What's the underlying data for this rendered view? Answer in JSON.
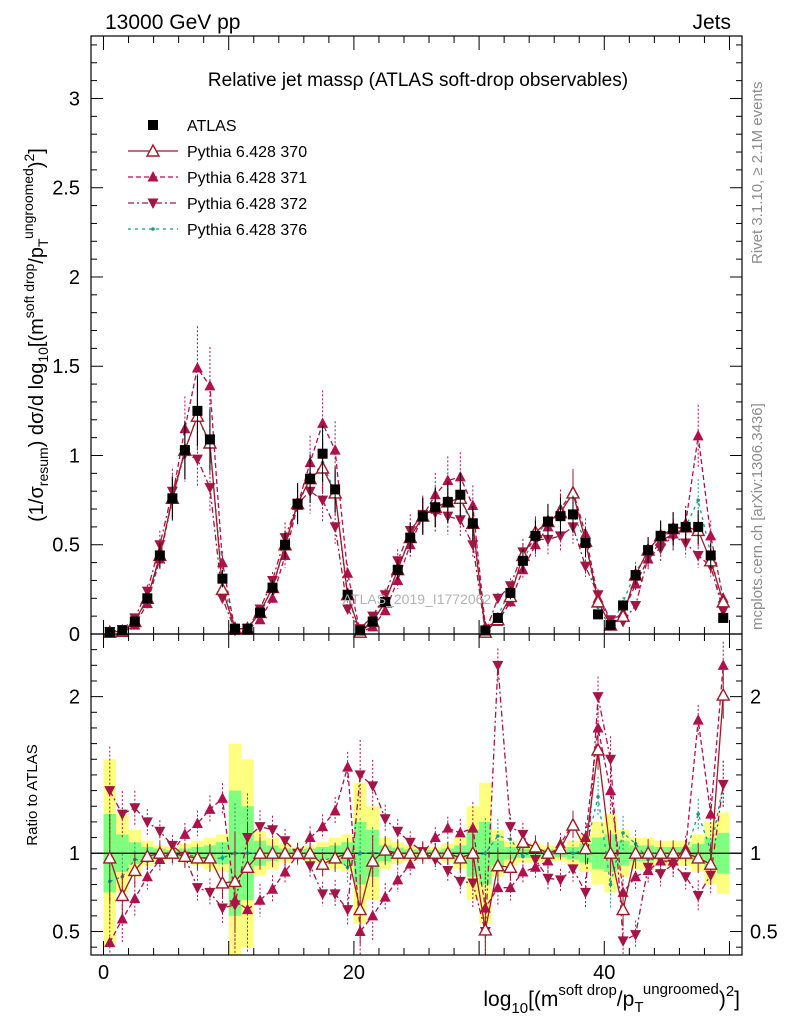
{
  "header": {
    "left": "13000 GeV pp",
    "right": "Jets"
  },
  "side": {
    "rivet": "Rivet 3.1.10, ≥ 2.1M events",
    "mcplots": "mcplots.cern.ch [arXiv:1306.3436]"
  },
  "colors": {
    "atlas": "#000000",
    "p370": "#9c1b2a",
    "p371": "#b0104d",
    "p372": "#a31545",
    "p376": "#1a9b83",
    "band_outer": "#ffff7f",
    "band_inner": "#7fff7f"
  },
  "chart_data": [
    {
      "type": "scatter",
      "title": "Relative jet massρ (ATLAS soft-drop observables)",
      "watermark": "ATLAS_2019_I1772062",
      "ylabel": "(1/σresum) dσ/d log10[(msoft drop/pTungroomed)2]",
      "xlabel": "log10[(msoft drop/pTungroomed)2]",
      "xlim": [
        -1,
        51
      ],
      "ylim": [
        0,
        3.35
      ],
      "yticks": [
        0,
        0.5,
        1,
        1.5,
        2,
        2.5,
        3
      ],
      "xticks": [
        0,
        20,
        40
      ],
      "legend": "top-left",
      "x": [
        0.5,
        1.5,
        2.5,
        3.5,
        4.5,
        5.5,
        6.5,
        7.5,
        8.5,
        9.5,
        10.5,
        11.5,
        12.5,
        13.5,
        14.5,
        15.5,
        16.5,
        17.5,
        18.5,
        19.5,
        20.5,
        21.5,
        22.5,
        23.5,
        24.5,
        25.5,
        26.5,
        27.5,
        28.5,
        29.5,
        30.5,
        31.5,
        32.5,
        33.5,
        34.5,
        35.5,
        36.5,
        37.5,
        38.5,
        39.5,
        40.5,
        41.5,
        42.5,
        43.5,
        44.5,
        45.5,
        46.5,
        47.5,
        48.5,
        49.5
      ],
      "series": [
        {
          "name": "ATLAS",
          "marker": "square",
          "values": [
            0.01,
            0.02,
            0.07,
            0.2,
            0.44,
            0.76,
            1.03,
            1.25,
            1.09,
            0.31,
            0.03,
            0.03,
            0.12,
            0.26,
            0.5,
            0.73,
            0.87,
            1.01,
            0.81,
            0.22,
            0.02,
            0.07,
            0.18,
            0.36,
            0.54,
            0.66,
            0.71,
            0.74,
            0.78,
            0.62,
            0.02,
            0.09,
            0.23,
            0.41,
            0.55,
            0.63,
            0.66,
            0.67,
            0.51,
            0.11,
            0.05,
            0.16,
            0.33,
            0.47,
            0.55,
            0.59,
            0.6,
            0.6,
            0.44,
            0.09
          ]
        },
        {
          "name": "Pythia 6.428 370",
          "marker": "open-triangle-up",
          "values": [
            0.01,
            0.015,
            0.07,
            0.2,
            0.44,
            0.76,
            1.03,
            1.22,
            1.07,
            0.25,
            0.03,
            0.03,
            0.12,
            0.26,
            0.5,
            0.73,
            0.87,
            0.93,
            0.79,
            0.22,
            0.01,
            0.07,
            0.18,
            0.36,
            0.54,
            0.66,
            0.71,
            0.74,
            0.76,
            0.62,
            0.01,
            0.08,
            0.21,
            0.44,
            0.57,
            0.63,
            0.68,
            0.79,
            0.52,
            0.18,
            0.05,
            0.1,
            0.33,
            0.47,
            0.55,
            0.59,
            0.6,
            0.58,
            0.41,
            0.18
          ]
        },
        {
          "name": "Pythia 6.428 371",
          "marker": "triangle-up",
          "values": [
            0.004,
            0.01,
            0.05,
            0.17,
            0.42,
            0.77,
            1.15,
            1.49,
            1.39,
            0.4,
            0.02,
            0.02,
            0.08,
            0.2,
            0.44,
            0.72,
            0.96,
            1.18,
            1.03,
            0.34,
            0.01,
            0.04,
            0.13,
            0.3,
            0.5,
            0.66,
            0.78,
            0.86,
            0.88,
            0.72,
            0.04,
            0.07,
            0.18,
            0.36,
            0.5,
            0.6,
            0.7,
            0.8,
            0.56,
            0.2,
            0.07,
            0.12,
            0.28,
            0.42,
            0.52,
            0.56,
            0.62,
            1.11,
            0.55,
            0.2
          ]
        },
        {
          "name": "Pythia 6.428 372",
          "marker": "triangle-down",
          "values": [
            0.014,
            0.025,
            0.09,
            0.24,
            0.5,
            0.8,
            1.01,
            0.98,
            0.82,
            0.2,
            0.02,
            0.03,
            0.14,
            0.3,
            0.54,
            0.73,
            0.8,
            0.75,
            0.6,
            0.14,
            0.03,
            0.1,
            0.22,
            0.41,
            0.58,
            0.67,
            0.68,
            0.66,
            0.64,
            0.5,
            0.01,
            0.2,
            0.27,
            0.46,
            0.53,
            0.53,
            0.55,
            0.6,
            0.38,
            0.22,
            0.08,
            0.07,
            0.16,
            0.43,
            0.48,
            0.55,
            0.51,
            0.44,
            0.38,
            0.13
          ]
        },
        {
          "name": "Pythia 6.428 376",
          "marker": "dot",
          "values": [
            0.01,
            0.018,
            0.07,
            0.19,
            0.43,
            0.75,
            1.02,
            1.23,
            1.05,
            0.3,
            0.03,
            0.03,
            0.12,
            0.26,
            0.49,
            0.73,
            0.86,
            0.96,
            0.79,
            0.2,
            0.02,
            0.07,
            0.18,
            0.36,
            0.54,
            0.66,
            0.71,
            0.74,
            0.76,
            0.6,
            0.02,
            0.1,
            0.25,
            0.4,
            0.56,
            0.62,
            0.68,
            0.67,
            0.52,
            0.15,
            0.04,
            0.18,
            0.35,
            0.45,
            0.53,
            0.55,
            0.6,
            0.75,
            0.45,
            0.13
          ]
        }
      ]
    },
    {
      "type": "line",
      "ylabel": "Ratio to ATLAS",
      "xlabel": "log10[(msoft drop/pTungroomed)2]",
      "xlim": [
        -1,
        51
      ],
      "ylim": [
        0.35,
        2.4
      ],
      "yticks": [
        0.5,
        1,
        2
      ],
      "xticks": [
        0,
        20,
        40
      ],
      "x": [
        0.5,
        1.5,
        2.5,
        3.5,
        4.5,
        5.5,
        6.5,
        7.5,
        8.5,
        9.5,
        10.5,
        11.5,
        12.5,
        13.5,
        14.5,
        15.5,
        16.5,
        17.5,
        18.5,
        19.5,
        20.5,
        21.5,
        22.5,
        23.5,
        24.5,
        25.5,
        26.5,
        27.5,
        28.5,
        29.5,
        30.5,
        31.5,
        32.5,
        33.5,
        34.5,
        35.5,
        36.5,
        37.5,
        38.5,
        39.5,
        40.5,
        41.5,
        42.5,
        43.5,
        44.5,
        45.5,
        46.5,
        47.5,
        48.5,
        49.5
      ],
      "band_outer": [
        0.6,
        0.25,
        0.15,
        0.08,
        0.05,
        0.04,
        0.06,
        0.08,
        0.1,
        0.12,
        0.7,
        0.6,
        0.14,
        0.1,
        0.06,
        0.04,
        0.05,
        0.07,
        0.1,
        0.12,
        0.45,
        0.3,
        0.1,
        0.07,
        0.05,
        0.04,
        0.04,
        0.06,
        0.1,
        0.3,
        0.45,
        0.15,
        0.08,
        0.06,
        0.06,
        0.05,
        0.05,
        0.08,
        0.12,
        0.2,
        0.25,
        0.15,
        0.1,
        0.1,
        0.08,
        0.08,
        0.08,
        0.12,
        0.2,
        0.26
      ],
      "band_inner": [
        0.25,
        0.12,
        0.07,
        0.04,
        0.03,
        0.02,
        0.03,
        0.04,
        0.05,
        0.07,
        0.4,
        0.3,
        0.08,
        0.05,
        0.03,
        0.02,
        0.03,
        0.04,
        0.05,
        0.07,
        0.2,
        0.15,
        0.05,
        0.035,
        0.025,
        0.02,
        0.02,
        0.03,
        0.05,
        0.15,
        0.2,
        0.08,
        0.04,
        0.03,
        0.03,
        0.025,
        0.025,
        0.04,
        0.06,
        0.1,
        0.12,
        0.08,
        0.05,
        0.05,
        0.04,
        0.04,
        0.04,
        0.06,
        0.1,
        0.13
      ],
      "series": [
        {
          "name": "Pythia 6.428 370",
          "values": [
            0.97,
            0.73,
            0.89,
            0.98,
            1.0,
            1.0,
            0.98,
            0.97,
            0.97,
            0.81,
            0.82,
            0.91,
            1.0,
            1.0,
            1.0,
            1.0,
            1.0,
            0.93,
            0.97,
            1.0,
            0.64,
            0.95,
            1.02,
            1.0,
            1.0,
            1.0,
            1.0,
            1.0,
            0.97,
            1.0,
            0.51,
            0.92,
            0.91,
            1.07,
            1.04,
            1.0,
            1.03,
            1.18,
            1.03,
            1.66,
            1.0,
            0.64,
            1.0,
            1.0,
            1.0,
            1.0,
            1.0,
            0.97,
            0.93,
            2.01
          ]
        },
        {
          "name": "Pythia 6.428 371",
          "values": [
            0.43,
            0.58,
            0.71,
            0.85,
            0.96,
            1.01,
            1.12,
            1.19,
            1.28,
            1.35,
            0.7,
            0.64,
            0.7,
            0.77,
            0.88,
            0.99,
            1.1,
            1.17,
            1.27,
            1.55,
            0.5,
            0.6,
            0.72,
            0.83,
            0.93,
            1.0,
            1.1,
            1.16,
            1.13,
            1.16,
            0.65,
            0.78,
            0.78,
            0.88,
            0.91,
            0.95,
            1.06,
            1.19,
            1.1,
            1.8,
            1.4,
            0.75,
            0.85,
            0.89,
            0.95,
            0.95,
            1.03,
            1.85,
            1.25,
            2.2
          ]
        },
        {
          "name": "Pythia 6.428 372",
          "values": [
            1.4,
            1.25,
            1.29,
            1.2,
            1.14,
            1.05,
            0.98,
            0.78,
            0.75,
            0.65,
            0.67,
            1.1,
            1.17,
            1.15,
            1.08,
            1.0,
            0.92,
            0.74,
            0.74,
            0.64,
            1.5,
            1.43,
            1.22,
            1.14,
            1.07,
            1.01,
            0.96,
            0.89,
            0.82,
            0.81,
            0.5,
            2.2,
            1.17,
            1.12,
            0.96,
            0.84,
            0.83,
            0.9,
            0.75,
            2.0,
            1.6,
            0.44,
            0.48,
            0.91,
            0.87,
            0.93,
            0.85,
            0.73,
            0.86,
            1.44
          ]
        },
        {
          "name": "Pythia 6.428 376",
          "values": [
            0.82,
            0.85,
            0.96,
            0.95,
            0.98,
            0.99,
            0.99,
            0.98,
            0.96,
            0.97,
            1.0,
            1.0,
            1.0,
            1.0,
            0.98,
            1.0,
            0.99,
            0.95,
            0.98,
            0.91,
            1.0,
            1.0,
            1.0,
            1.0,
            1.0,
            1.0,
            1.0,
            1.0,
            0.97,
            0.97,
            1.0,
            1.11,
            1.09,
            0.98,
            1.02,
            0.98,
            1.03,
            1.0,
            1.02,
            1.36,
            0.8,
            1.13,
            1.06,
            0.96,
            0.96,
            0.93,
            1.0,
            1.25,
            1.02,
            1.44
          ]
        }
      ]
    }
  ]
}
